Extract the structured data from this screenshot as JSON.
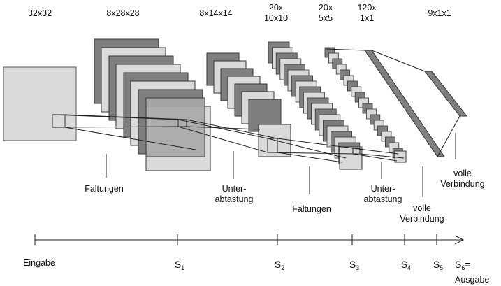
{
  "dims": {
    "in": "32x32",
    "c1": "8x28x28",
    "s1": "8x14x14",
    "c2a": "20x",
    "c2b": "10x10",
    "s2a": "20x",
    "s2b": "5x5",
    "c3a": "120x",
    "c3b": "1x1",
    "out": "9x1x1"
  },
  "ops": {
    "faltungen1": "Faltungen",
    "unter1a": "Unter-",
    "unter1b": "abtastung",
    "faltungen2": "Faltungen",
    "unter2a": "Unter-",
    "unter2b": "abtastung",
    "volle1a": "volle",
    "volle1b": "Verbindung",
    "volle2a": "volle",
    "volle2b": "Verbindung"
  },
  "axis": {
    "eingabe": "Eingabe",
    "s": "S",
    "s1": "1",
    "s2": "2",
    "s3": "3",
    "s4": "4",
    "s5": "5",
    "s6": "6",
    "s6_suffix": "=",
    "ausgabe": "Ausgabe"
  },
  "colors": {
    "dark": "#7f7f7f",
    "light": "#dadada",
    "mid": "#bdbdbd",
    "line": "#000000"
  }
}
